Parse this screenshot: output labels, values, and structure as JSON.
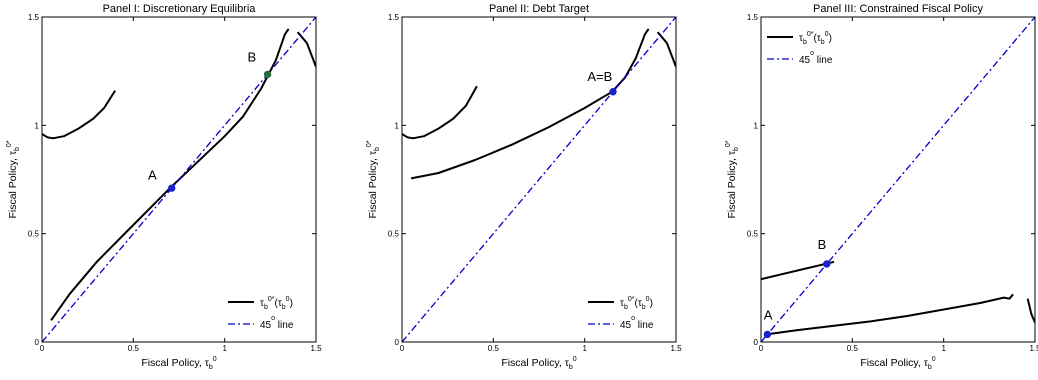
{
  "chart_data": [
    {
      "type": "line",
      "title": "Panel I: Discretionary Equilibria",
      "xlabel": {
        "text": "Fiscal Policy, τ",
        "sub": "b",
        "sup": "0"
      },
      "ylabel": {
        "text": "Fiscal Policy, τ",
        "sub": "b",
        "sup": "0*"
      },
      "xlim": [
        0,
        1.5
      ],
      "ylim": [
        0,
        1.5
      ],
      "xticks": [
        "0",
        "0.5",
        "1",
        "1.5"
      ],
      "yticks": [
        "0",
        "0.5",
        "1",
        "1.5"
      ],
      "legend_position": "bottom-right",
      "series": [
        {
          "name": {
            "text": "τ",
            "sub": "b",
            "sup": "0*",
            "tail": "(τ",
            "tail_sub": "b",
            "tail_sup": "0",
            "end": ")"
          },
          "style": "solid",
          "color": "#000000",
          "segments": [
            [
              [
                0.0,
                0.96
              ],
              [
                0.03,
                0.945
              ],
              [
                0.06,
                0.94
              ],
              [
                0.12,
                0.95
              ],
              [
                0.2,
                0.985
              ],
              [
                0.28,
                1.03
              ],
              [
                0.34,
                1.08
              ],
              [
                0.4,
                1.16
              ]
            ],
            [
              [
                0.05,
                0.1
              ],
              [
                0.15,
                0.22
              ],
              [
                0.3,
                0.37
              ],
              [
                0.5,
                0.54
              ],
              [
                0.7,
                0.71
              ],
              [
                0.85,
                0.83
              ],
              [
                1.0,
                0.95
              ],
              [
                1.1,
                1.04
              ],
              [
                1.2,
                1.17
              ],
              [
                1.28,
                1.3
              ],
              [
                1.33,
                1.42
              ],
              [
                1.35,
                1.445
              ]
            ],
            [
              [
                1.4,
                1.43
              ],
              [
                1.45,
                1.38
              ],
              [
                1.5,
                1.27
              ]
            ]
          ]
        },
        {
          "name": {
            "text": "45",
            "sup": "o",
            "end": " line"
          },
          "style": "dashdot",
          "color": "#0000cc",
          "segments": [
            [
              [
                0,
                0
              ],
              [
                1.5,
                1.5
              ]
            ]
          ]
        }
      ],
      "points": [
        {
          "label": "A",
          "x": 0.71,
          "y": 0.71,
          "color": "#1a22cc",
          "label_dx": -0.13,
          "label_dy": 0.04
        },
        {
          "label": "B",
          "x": 1.235,
          "y": 1.235,
          "color": "#2a6b3a",
          "label_dx": -0.11,
          "label_dy": 0.06
        }
      ]
    },
    {
      "type": "line",
      "title": "Panel II: Debt Target",
      "xlabel": {
        "text": "Fiscal Policy, τ",
        "sub": "b",
        "sup": "0"
      },
      "ylabel": {
        "text": "Fiscal Policy, τ",
        "sub": "b",
        "sup": "0*"
      },
      "xlim": [
        0,
        1.5
      ],
      "ylim": [
        0,
        1.5
      ],
      "xticks": [
        "0",
        "0.5",
        "1",
        "1.5"
      ],
      "yticks": [
        "0",
        "0.5",
        "1",
        "1.5"
      ],
      "legend_position": "bottom-right",
      "series": [
        {
          "name": {
            "text": "τ",
            "sub": "b",
            "sup": "0*",
            "tail": "(τ",
            "tail_sub": "b",
            "tail_sup": "0",
            "end": ")"
          },
          "style": "solid",
          "color": "#000000",
          "segments": [
            [
              [
                0.0,
                0.96
              ],
              [
                0.03,
                0.945
              ],
              [
                0.06,
                0.94
              ],
              [
                0.12,
                0.95
              ],
              [
                0.2,
                0.985
              ],
              [
                0.28,
                1.03
              ],
              [
                0.35,
                1.09
              ],
              [
                0.41,
                1.18
              ]
            ],
            [
              [
                0.05,
                0.755
              ],
              [
                0.2,
                0.78
              ],
              [
                0.4,
                0.84
              ],
              [
                0.6,
                0.91
              ],
              [
                0.8,
                0.99
              ],
              [
                1.0,
                1.08
              ],
              [
                1.1,
                1.13
              ],
              [
                1.15,
                1.155
              ],
              [
                1.22,
                1.22
              ],
              [
                1.28,
                1.31
              ],
              [
                1.33,
                1.42
              ],
              [
                1.35,
                1.445
              ]
            ],
            [
              [
                1.4,
                1.43
              ],
              [
                1.45,
                1.38
              ],
              [
                1.5,
                1.27
              ]
            ]
          ]
        },
        {
          "name": {
            "text": "45",
            "sup": "o",
            "end": " line"
          },
          "style": "dashdot",
          "color": "#0000cc",
          "segments": [
            [
              [
                0,
                0
              ],
              [
                1.5,
                1.5
              ]
            ]
          ]
        }
      ],
      "points": [
        {
          "label": "A=B",
          "x": 1.155,
          "y": 1.155,
          "color": "#1a22cc",
          "label_dx": -0.14,
          "label_dy": 0.05
        }
      ]
    },
    {
      "type": "line",
      "title": "Panel III: Constrained Fiscal Policy",
      "xlabel": {
        "text": "Fiscal Policy, τ",
        "sub": "b",
        "sup": "0"
      },
      "ylabel": {
        "text": "Fiscal Policy, τ",
        "sub": "b",
        "sup": "0*"
      },
      "xlim": [
        0,
        1.5
      ],
      "ylim": [
        0,
        1.5
      ],
      "xticks": [
        "0",
        "0.5",
        "1",
        "1.5"
      ],
      "yticks": [
        "0",
        "0.5",
        "1",
        "1.5"
      ],
      "legend_position": "top-left",
      "series": [
        {
          "name": {
            "text": "τ",
            "sub": "b",
            "sup": "0*",
            "tail": "(τ",
            "tail_sub": "b",
            "tail_sup": "0",
            "end": ")"
          },
          "style": "solid",
          "color": "#000000",
          "segments": [
            [
              [
                0.0,
                0.29
              ],
              [
                0.1,
                0.31
              ],
              [
                0.2,
                0.33
              ],
              [
                0.3,
                0.35
              ],
              [
                0.35,
                0.36
              ],
              [
                0.4,
                0.37
              ]
            ],
            [
              [
                0.03,
                0.035
              ],
              [
                0.2,
                0.055
              ],
              [
                0.4,
                0.075
              ],
              [
                0.6,
                0.095
              ],
              [
                0.8,
                0.12
              ],
              [
                1.0,
                0.15
              ],
              [
                1.2,
                0.18
              ],
              [
                1.33,
                0.205
              ],
              [
                1.36,
                0.2
              ],
              [
                1.38,
                0.22
              ]
            ],
            [
              [
                1.46,
                0.2
              ],
              [
                1.48,
                0.13
              ],
              [
                1.5,
                0.09
              ]
            ]
          ]
        },
        {
          "name": {
            "text": "45",
            "sup": "o",
            "end": " line"
          },
          "style": "dashdot",
          "color": "#0000cc",
          "segments": [
            [
              [
                0,
                0
              ],
              [
                1.5,
                1.5
              ]
            ]
          ]
        }
      ],
      "points": [
        {
          "label": "A",
          "x": 0.035,
          "y": 0.035,
          "color": "#1a22cc",
          "label_dx": -0.02,
          "label_dy": 0.07
        },
        {
          "label": "B",
          "x": 0.36,
          "y": 0.36,
          "color": "#1a22cc",
          "label_dx": -0.05,
          "label_dy": 0.07
        }
      ]
    }
  ]
}
